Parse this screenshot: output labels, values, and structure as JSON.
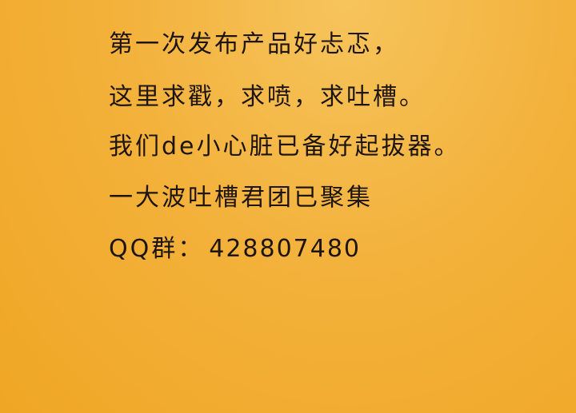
{
  "announcement": {
    "lines": [
      "第一次发布产品好忐忑，",
      "这里求戳，求喷，求吐槽。",
      "我们de小心脏已备好起拔器。",
      "一大波吐槽君团已聚集"
    ],
    "qq_label": "QQ群：",
    "qq_number": "428807480"
  },
  "colors": {
    "background": "#f3b23c",
    "text": "#1e1410"
  }
}
